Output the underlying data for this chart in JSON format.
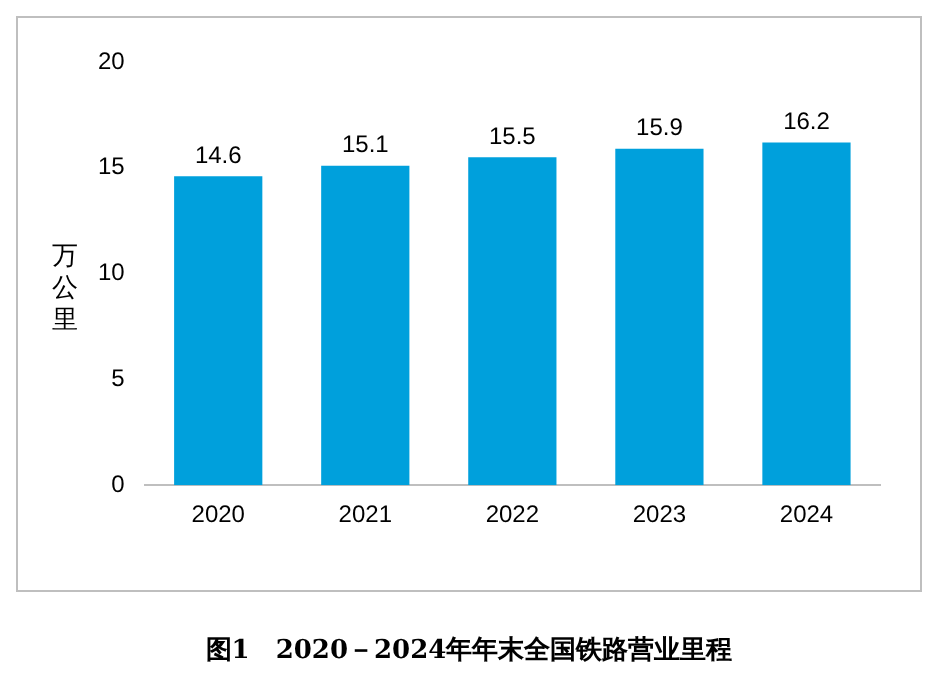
{
  "chart_data": {
    "type": "bar",
    "title": "图1　2020－2024年年末全国铁路营业里程",
    "ylabel": "万公里",
    "categories": [
      "2020",
      "2021",
      "2022",
      "2023",
      "2024"
    ],
    "values": [
      14.6,
      15.1,
      15.5,
      15.9,
      16.2
    ],
    "color": "#00a0dc",
    "ylim": [
      0,
      20
    ],
    "yticks": [
      0,
      5,
      10,
      15,
      20
    ],
    "grid": false,
    "legend": false,
    "data_labels": true
  }
}
